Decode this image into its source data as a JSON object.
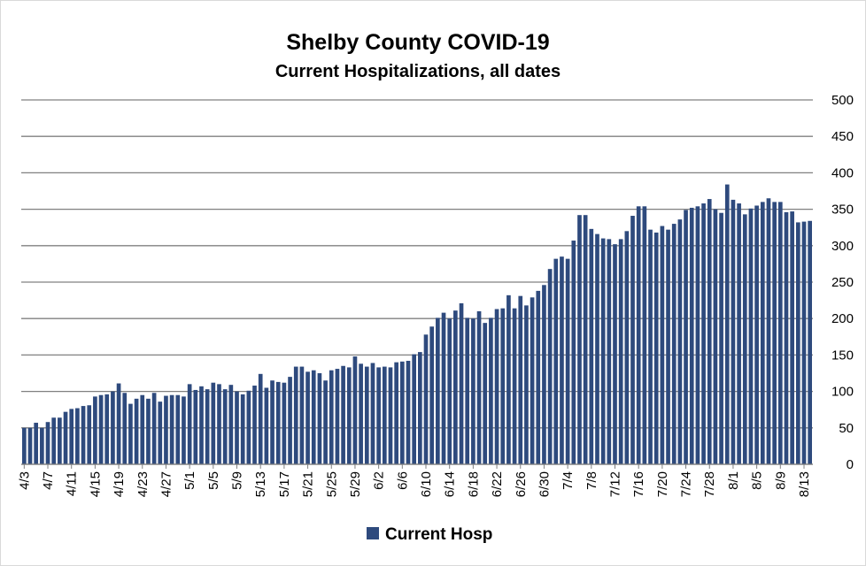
{
  "chart_data": {
    "type": "bar",
    "title": "Shelby County COVID-19",
    "subtitle": "Current Hospitalizations, all dates",
    "xlabel": "",
    "ylabel": "",
    "ylim": [
      0,
      500
    ],
    "y_ticks": [
      0,
      50,
      100,
      150,
      200,
      250,
      300,
      350,
      400,
      450,
      500
    ],
    "y_axis_side": "right",
    "grid": true,
    "legend_position": "bottom",
    "bar_color": "#2e4a7d",
    "gridline_color": "#808080",
    "x_start": "4/3",
    "x_end": "8/15",
    "x_tick_labels": [
      "4/3",
      "4/7",
      "4/11",
      "4/15",
      "4/19",
      "4/23",
      "4/27",
      "5/1",
      "5/5",
      "5/9",
      "5/13",
      "5/17",
      "5/21",
      "5/25",
      "5/29",
      "6/2",
      "6/6",
      "6/10",
      "6/14",
      "6/18",
      "6/22",
      "6/26",
      "6/30",
      "7/4",
      "7/8",
      "7/12",
      "7/16",
      "7/20",
      "7/24",
      "7/28",
      "8/1",
      "8/5",
      "8/9",
      "8/13"
    ],
    "series": [
      {
        "name": "Current Hosp",
        "values": [
          50,
          50,
          57,
          50,
          58,
          64,
          64,
          72,
          76,
          77,
          80,
          81,
          93,
          95,
          96,
          100,
          111,
          98,
          83,
          90,
          95,
          90,
          98,
          86,
          94,
          95,
          95,
          93,
          110,
          102,
          107,
          103,
          112,
          110,
          103,
          109,
          100,
          96,
          101,
          108,
          124,
          105,
          115,
          113,
          112,
          120,
          134,
          134,
          127,
          129,
          125,
          115,
          129,
          131,
          135,
          133,
          148,
          138,
          134,
          139,
          133,
          134,
          133,
          140,
          141,
          142,
          151,
          154,
          178,
          189,
          201,
          208,
          200,
          211,
          221,
          201,
          200,
          210,
          194,
          201,
          213,
          214,
          232,
          214,
          231,
          218,
          229,
          238,
          246,
          268,
          282,
          285,
          282,
          307,
          342,
          342,
          323,
          316,
          310,
          309,
          302,
          309,
          320,
          341,
          354,
          354,
          322,
          318,
          327,
          322,
          330,
          336,
          349,
          352,
          354,
          358,
          364,
          350,
          345,
          384,
          363,
          358,
          343,
          351,
          355,
          360,
          365,
          360,
          360,
          346,
          347,
          332,
          333,
          334
        ]
      }
    ]
  }
}
